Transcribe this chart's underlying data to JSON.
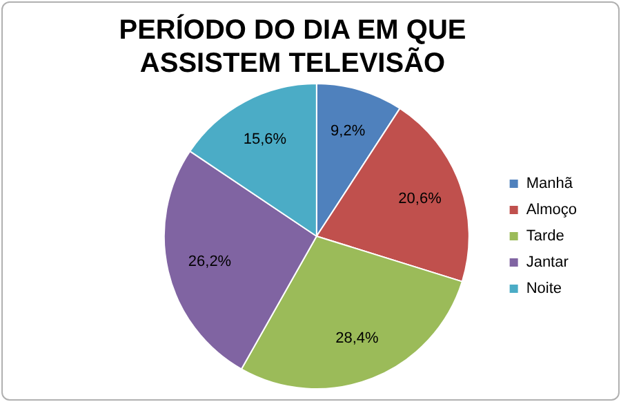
{
  "chart_data": {
    "type": "pie",
    "title": "PERÍODO DO DIA EM QUE ASSISTEM TELEVISÃO",
    "categories": [
      "Manhã",
      "Almoço",
      "Tarde",
      "Jantar",
      "Noite"
    ],
    "values": [
      9.2,
      20.6,
      28.4,
      26.2,
      15.6
    ],
    "value_labels": [
      "9,2%",
      "20,6%",
      "28,4%",
      "26,2%",
      "15,6%"
    ],
    "colors": [
      "#4f81bd",
      "#c0504d",
      "#9bbb59",
      "#8064a2",
      "#4bacc6"
    ],
    "legend": "right"
  }
}
